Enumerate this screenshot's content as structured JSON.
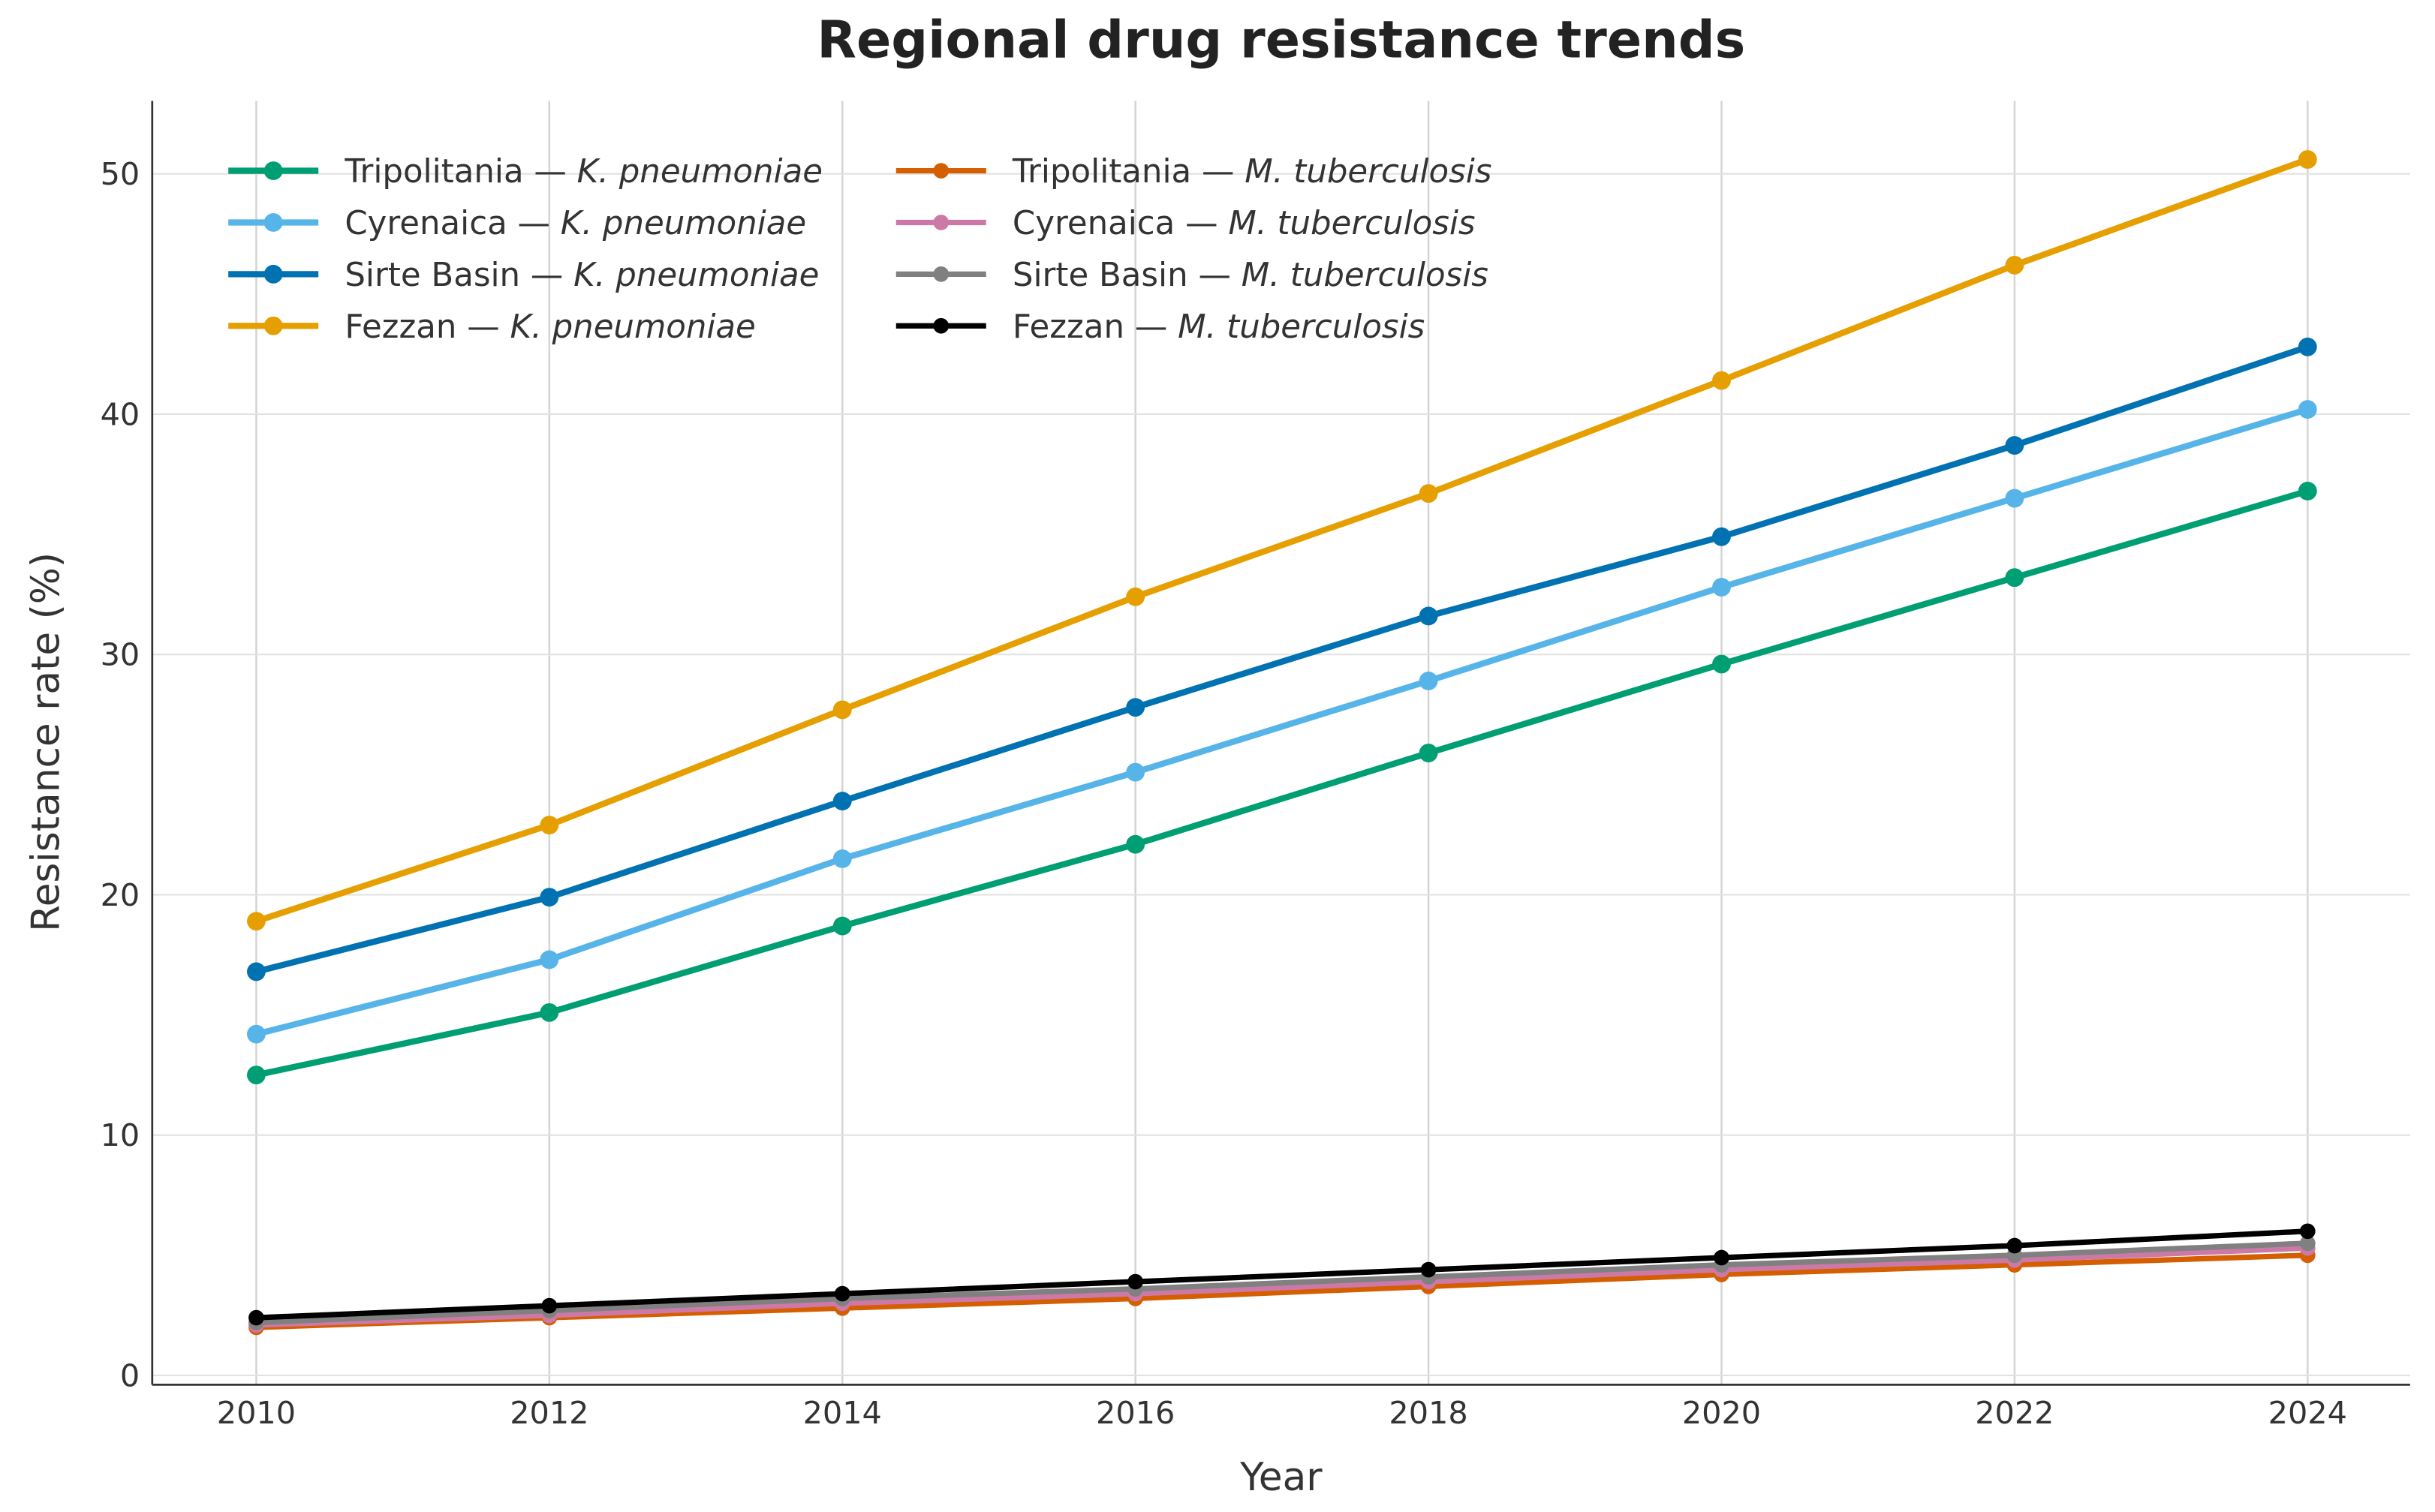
{
  "chart_data": {
    "type": "line",
    "title": "Regional drug resistance trends",
    "xlabel": "Year",
    "ylabel": "Resistance rate (%)",
    "x": [
      2010,
      2012,
      2014,
      2016,
      2018,
      2020,
      2022,
      2024
    ],
    "xticks": [
      "2010",
      "2012",
      "2014",
      "2016",
      "2018",
      "2020",
      "2022",
      "2024"
    ],
    "yticks": [
      "0",
      "10",
      "20",
      "30",
      "40",
      "50"
    ],
    "ytick_values": [
      0,
      10,
      20,
      30,
      40,
      50
    ],
    "xlim": [
      2009.3,
      2024.7
    ],
    "ylim": [
      -0.4,
      53
    ],
    "grid": true,
    "legend_placement": "top-left",
    "series": [
      {
        "region": "Tripolitania",
        "sep": " — ",
        "species": "K. pneumoniae",
        "color": "#009E73",
        "values": [
          12.5,
          15.1,
          18.7,
          22.1,
          25.9,
          29.6,
          33.2,
          36.8
        ]
      },
      {
        "region": "Cyrenaica",
        "sep": " — ",
        "species": "K. pneumoniae",
        "color": "#56B4E9",
        "values": [
          14.2,
          17.3,
          21.5,
          25.1,
          28.9,
          32.8,
          36.5,
          40.2
        ]
      },
      {
        "region": "Sirte Basin",
        "sep": " — ",
        "species": "K. pneumoniae",
        "color": "#0072B2",
        "values": [
          16.8,
          19.9,
          23.9,
          27.8,
          31.6,
          34.9,
          38.7,
          42.8
        ]
      },
      {
        "region": "Fezzan",
        "sep": " — ",
        "species": "K. pneumoniae",
        "color": "#E69F00",
        "values": [
          18.9,
          22.9,
          27.7,
          32.4,
          36.7,
          41.4,
          46.2,
          50.6
        ]
      },
      {
        "region": "Tripolitania",
        "sep": " — ",
        "species": "M. tuberculosis",
        "color": "#D55E00",
        "values": [
          2.0,
          2.4,
          2.8,
          3.2,
          3.7,
          4.2,
          4.6,
          5.0
        ]
      },
      {
        "region": "Cyrenaica",
        "sep": " — ",
        "species": "M. tuberculosis",
        "color": "#CC79A7",
        "values": [
          2.1,
          2.5,
          3.0,
          3.4,
          3.9,
          4.4,
          4.8,
          5.3
        ]
      },
      {
        "region": "Sirte Basin",
        "sep": " — ",
        "species": "M. tuberculosis",
        "color": "#808080",
        "values": [
          2.2,
          2.7,
          3.2,
          3.6,
          4.1,
          4.6,
          5.0,
          5.5
        ]
      },
      {
        "region": "Fezzan",
        "sep": " — ",
        "species": "M. tuberculosis",
        "color": "#000000",
        "values": [
          2.4,
          2.9,
          3.4,
          3.9,
          4.4,
          4.9,
          5.4,
          6.0
        ]
      }
    ]
  }
}
